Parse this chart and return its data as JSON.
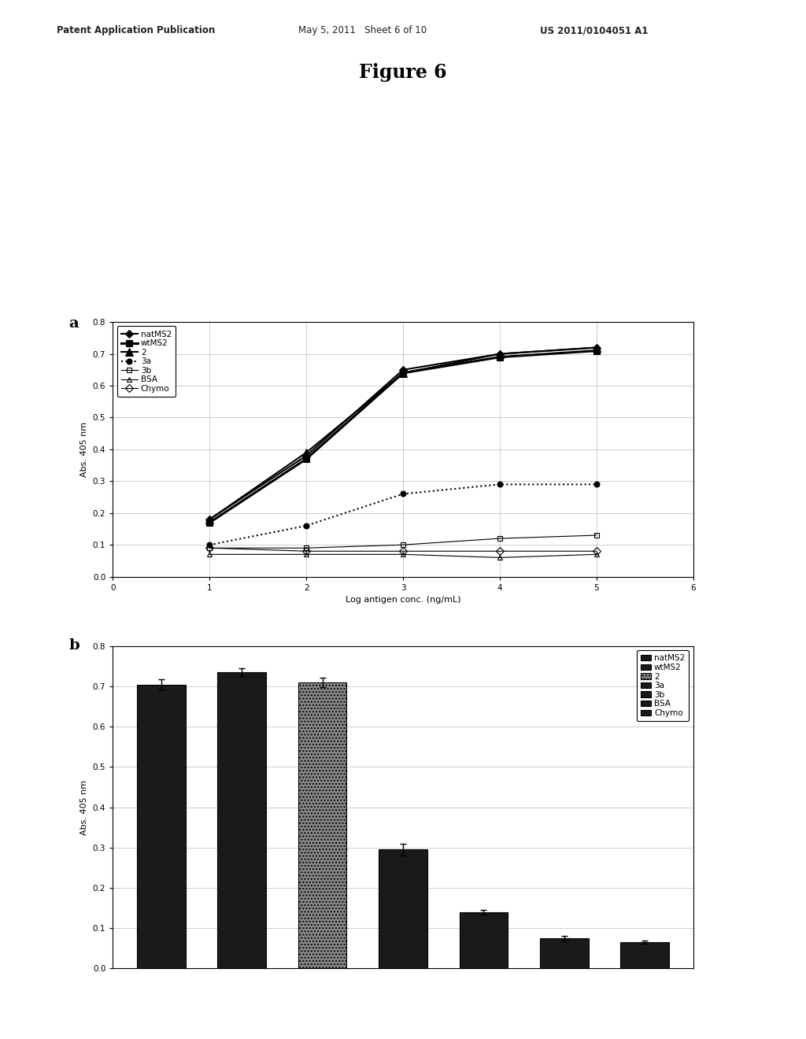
{
  "title": "Figure 6",
  "header_left": "Patent Application Publication",
  "header_mid": "May 5, 2011   Sheet 6 of 10",
  "header_right": "US 2011/0104051 A1",
  "panel_a": {
    "label": "a",
    "xlabel": "Log antigen conc. (ng/mL)",
    "ylabel": "Abs. 405 nm",
    "xlim": [
      0,
      6
    ],
    "ylim": [
      0,
      0.8
    ],
    "xticks": [
      0,
      1,
      2,
      3,
      4,
      5,
      6
    ],
    "yticks": [
      0,
      0.1,
      0.2,
      0.3,
      0.4,
      0.5,
      0.6,
      0.7,
      0.8
    ],
    "series": {
      "natMS2": {
        "x": [
          1,
          2,
          3,
          4,
          5
        ],
        "y": [
          0.18,
          0.38,
          0.65,
          0.7,
          0.72
        ],
        "color": "#000000",
        "marker": "D",
        "markersize": 5,
        "linestyle": "-",
        "linewidth": 1.5,
        "fillstyle": "full"
      },
      "wtMS2": {
        "x": [
          1,
          2,
          3,
          4,
          5
        ],
        "y": [
          0.17,
          0.37,
          0.64,
          0.69,
          0.71
        ],
        "color": "#000000",
        "marker": "s",
        "markersize": 6,
        "linestyle": "-",
        "linewidth": 2.2,
        "fillstyle": "full"
      },
      "2": {
        "x": [
          1,
          2,
          3,
          4,
          5
        ],
        "y": [
          0.18,
          0.39,
          0.64,
          0.7,
          0.72
        ],
        "color": "#000000",
        "marker": "^",
        "markersize": 7,
        "linestyle": "-",
        "linewidth": 1.5,
        "fillstyle": "full"
      },
      "3a": {
        "x": [
          1,
          2,
          3,
          4,
          5
        ],
        "y": [
          0.1,
          0.16,
          0.26,
          0.29,
          0.29
        ],
        "color": "#000000",
        "marker": "o",
        "markersize": 5,
        "linestyle": ":",
        "linewidth": 1.5,
        "fillstyle": "full"
      },
      "3b": {
        "x": [
          1,
          2,
          3,
          4,
          5
        ],
        "y": [
          0.09,
          0.09,
          0.1,
          0.12,
          0.13
        ],
        "color": "#000000",
        "marker": "s",
        "markersize": 5,
        "linestyle": "-",
        "linewidth": 0.8,
        "fillstyle": "none"
      },
      "BSA": {
        "x": [
          1,
          2,
          3,
          4,
          5
        ],
        "y": [
          0.07,
          0.07,
          0.07,
          0.06,
          0.07
        ],
        "color": "#000000",
        "marker": "^",
        "markersize": 5,
        "linestyle": "-",
        "linewidth": 0.8,
        "fillstyle": "none"
      },
      "Chymo": {
        "x": [
          1,
          2,
          3,
          4,
          5
        ],
        "y": [
          0.09,
          0.08,
          0.08,
          0.08,
          0.08
        ],
        "color": "#000000",
        "marker": "D",
        "markersize": 5,
        "linestyle": "-",
        "linewidth": 0.8,
        "fillstyle": "none"
      }
    }
  },
  "panel_b": {
    "label": "b",
    "xlabel": "",
    "ylabel": "Abs. 405 nm",
    "ylim": [
      0,
      0.8
    ],
    "yticks": [
      0,
      0.1,
      0.2,
      0.3,
      0.4,
      0.5,
      0.6,
      0.7,
      0.8
    ],
    "categories": [
      "natMS2",
      "wtMS2",
      "2",
      "3a",
      "3b",
      "BSA",
      "Chymo"
    ],
    "values": [
      0.705,
      0.735,
      0.71,
      0.295,
      0.14,
      0.075,
      0.065
    ],
    "errors": [
      0.012,
      0.01,
      0.012,
      0.015,
      0.006,
      0.006,
      0.004
    ],
    "bar_colors": [
      "#1a1a1a",
      "#1a1a1a",
      "#555555",
      "#1a1a1a",
      "#1a1a1a",
      "#1a1a1a",
      "#1a1a1a"
    ],
    "legend_labels": [
      "natMS2",
      "wtMS2",
      "2",
      "3a",
      "3b",
      "BSA",
      "Chymo"
    ],
    "legend_colors": [
      "#1a1a1a",
      "#1a1a1a",
      "#555555",
      "#1a1a1a",
      "#1a1a1a",
      "#1a1a1a",
      "#1a1a1a"
    ]
  }
}
